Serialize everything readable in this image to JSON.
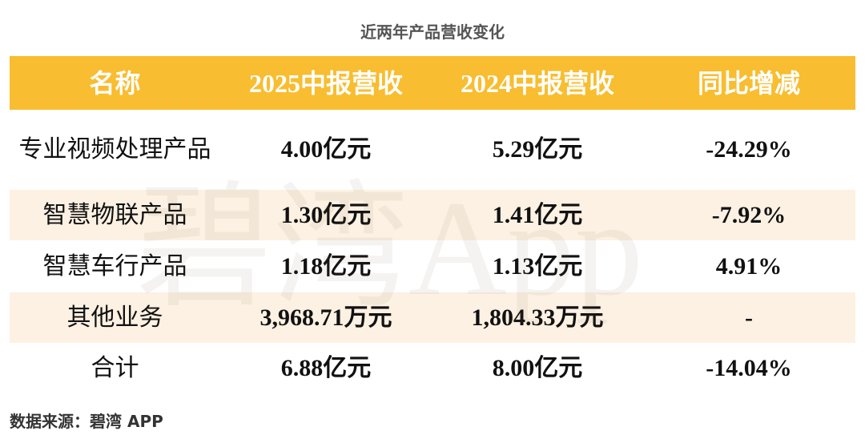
{
  "title": "近两年产品营收变化",
  "table": {
    "header": [
      "名称",
      "2025中报营收",
      "2024中报营收",
      "同比增减"
    ],
    "rows": [
      [
        "专业视频处理产品",
        "4.00亿元",
        "5.29亿元",
        "-24.29%"
      ],
      [
        "智慧物联产品",
        "1.30亿元",
        "1.41亿元",
        "-7.92%"
      ],
      [
        "智慧车行产品",
        "1.18亿元",
        "1.13亿元",
        "4.91%"
      ],
      [
        "其他业务",
        "3,968.71万元",
        "1,804.33万元",
        "-"
      ],
      [
        "合计",
        "6.88亿元",
        "8.00亿元",
        "-14.04%"
      ]
    ]
  },
  "watermark": "碧湾App",
  "source": "数据来源：碧湾 APP"
}
